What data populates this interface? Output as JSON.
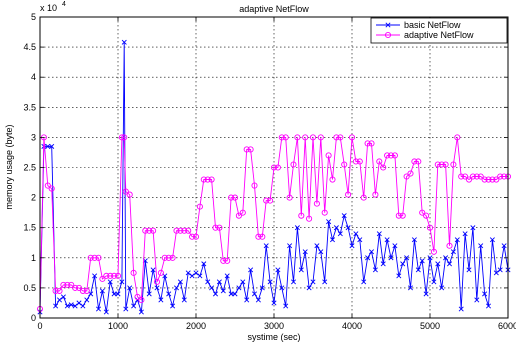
{
  "chart_data": {
    "type": "line",
    "title": "adaptive NetFlow",
    "xlabel": "systime (sec)",
    "ylabel": "memory usage (byte)",
    "y_multiplier_label": "x 10",
    "y_multiplier_exponent": "4",
    "xlim": [
      0,
      6000
    ],
    "ylim": [
      0,
      5
    ],
    "x_ticks": [
      0,
      1000,
      2000,
      3000,
      4000,
      5000,
      6000
    ],
    "y_ticks": [
      0,
      0.5,
      1,
      1.5,
      2,
      2.5,
      3,
      3.5,
      4,
      4.5,
      5
    ],
    "x_tick_labels": [
      "0",
      "1000",
      "2000",
      "3000",
      "4000",
      "5000",
      "6000"
    ],
    "y_tick_labels": [
      "0",
      "0.5",
      "1",
      "1.5",
      "2",
      "2.5",
      "3",
      "3.5",
      "4",
      "4.5",
      "5"
    ],
    "grid": true,
    "legend_position": "top-right",
    "series": [
      {
        "name": "basic NetFlow",
        "color": "#0000ff",
        "marker": "x",
        "x": [
          0,
          50,
          100,
          150,
          200,
          250,
          300,
          350,
          400,
          450,
          500,
          550,
          600,
          650,
          700,
          750,
          800,
          850,
          900,
          950,
          1000,
          1050,
          1080,
          1100,
          1150,
          1200,
          1250,
          1300,
          1350,
          1400,
          1450,
          1500,
          1550,
          1600,
          1650,
          1700,
          1750,
          1800,
          1850,
          1900,
          1950,
          2000,
          2050,
          2100,
          2150,
          2200,
          2250,
          2300,
          2350,
          2400,
          2450,
          2500,
          2550,
          2600,
          2650,
          2700,
          2750,
          2800,
          2850,
          2900,
          2950,
          3000,
          3050,
          3100,
          3150,
          3200,
          3250,
          3300,
          3350,
          3400,
          3450,
          3500,
          3550,
          3600,
          3650,
          3700,
          3750,
          3800,
          3850,
          3900,
          3950,
          4000,
          4050,
          4100,
          4150,
          4200,
          4250,
          4300,
          4350,
          4400,
          4450,
          4500,
          4550,
          4600,
          4650,
          4700,
          4750,
          4800,
          4850,
          4900,
          4950,
          5000,
          5050,
          5100,
          5150,
          5200,
          5250,
          5300,
          5350,
          5400,
          5450,
          5500,
          5550,
          5600,
          5650,
          5700,
          5750,
          5800,
          5850,
          5900,
          5950,
          6000
        ],
        "y": [
          0.1,
          2.85,
          2.85,
          2.85,
          0.2,
          0.3,
          0.35,
          0.2,
          0.22,
          0.2,
          0.25,
          0.2,
          0.3,
          0.4,
          0.7,
          0.15,
          0.45,
          0.1,
          0.6,
          0.4,
          0.4,
          0.6,
          4.58,
          0.15,
          0.5,
          0.2,
          0.3,
          0.1,
          0.95,
          0.4,
          0.8,
          0.5,
          0.3,
          0.7,
          0.4,
          0.2,
          0.5,
          0.6,
          0.3,
          0.75,
          0.7,
          0.75,
          0.7,
          0.9,
          0.6,
          0.5,
          0.4,
          0.6,
          0.45,
          0.7,
          0.4,
          0.4,
          0.5,
          0.6,
          0.3,
          0.8,
          0.4,
          0.3,
          0.5,
          1.2,
          0.6,
          0.25,
          0.8,
          0.5,
          0.2,
          1.2,
          0.6,
          1.5,
          0.8,
          1.1,
          0.5,
          0.6,
          1.2,
          1.1,
          0.6,
          1.6,
          1.3,
          1.5,
          1.4,
          1.7,
          1.5,
          1.2,
          1.4,
          1.3,
          0.6,
          1.0,
          1.1,
          0.8,
          1.4,
          0.9,
          1.3,
          1.0,
          1.2,
          0.7,
          0.9,
          1.0,
          0.5,
          1.3,
          0.8,
          0.95,
          0.4,
          1.0,
          0.6,
          0.9,
          0.5,
          1.0,
          0.9,
          1.1,
          1.3,
          0.15,
          1.4,
          0.8,
          1.5,
          0.3,
          1.2,
          0.4,
          0.2,
          1.3,
          0.75,
          0.8,
          1.2,
          0.8
        ]
      },
      {
        "name": "adaptive NetFlow",
        "color": "#ff00ff",
        "marker": "o",
        "x": [
          0,
          50,
          100,
          150,
          200,
          250,
          300,
          350,
          400,
          450,
          500,
          550,
          600,
          650,
          700,
          750,
          800,
          850,
          900,
          950,
          1000,
          1050,
          1080,
          1100,
          1150,
          1200,
          1250,
          1300,
          1350,
          1400,
          1450,
          1500,
          1550,
          1600,
          1650,
          1700,
          1750,
          1800,
          1850,
          1900,
          1950,
          2000,
          2050,
          2100,
          2150,
          2200,
          2250,
          2300,
          2350,
          2400,
          2450,
          2500,
          2550,
          2600,
          2650,
          2700,
          2750,
          2800,
          2850,
          2900,
          2950,
          3000,
          3050,
          3100,
          3150,
          3200,
          3250,
          3300,
          3350,
          3400,
          3450,
          3500,
          3550,
          3600,
          3650,
          3700,
          3750,
          3800,
          3850,
          3900,
          3950,
          4000,
          4050,
          4100,
          4150,
          4200,
          4250,
          4300,
          4350,
          4400,
          4450,
          4500,
          4550,
          4600,
          4650,
          4700,
          4750,
          4800,
          4850,
          4900,
          4950,
          5000,
          5050,
          5100,
          5150,
          5200,
          5250,
          5300,
          5350,
          5400,
          5450,
          5500,
          5550,
          5600,
          5650,
          5700,
          5750,
          5800,
          5850,
          5900,
          5950,
          6000
        ],
        "y": [
          0.15,
          3.0,
          2.2,
          2.15,
          0.45,
          0.45,
          0.55,
          0.55,
          0.55,
          0.5,
          0.5,
          0.45,
          0.45,
          1.0,
          1.0,
          1.0,
          0.65,
          0.7,
          0.7,
          0.7,
          0.7,
          3.0,
          3.0,
          2.1,
          2.05,
          0.75,
          0.35,
          0.3,
          1.45,
          1.45,
          1.45,
          0.6,
          0.75,
          1.0,
          1.0,
          1.0,
          1.45,
          1.45,
          1.45,
          1.45,
          1.35,
          1.35,
          1.85,
          2.3,
          2.3,
          2.3,
          1.5,
          1.5,
          0.95,
          0.95,
          2.0,
          2.0,
          1.7,
          1.75,
          2.8,
          2.8,
          2.2,
          1.35,
          1.35,
          1.95,
          1.95,
          2.5,
          2.5,
          3.0,
          3.0,
          2.0,
          2.55,
          3.0,
          1.7,
          3.0,
          1.65,
          3.0,
          1.9,
          3.0,
          1.75,
          2.7,
          2.3,
          3.0,
          3.0,
          2.55,
          2.05,
          3.0,
          2.6,
          2.6,
          2.0,
          2.9,
          2.9,
          2.05,
          2.6,
          2.5,
          2.7,
          2.7,
          2.7,
          1.7,
          1.7,
          2.35,
          2.4,
          2.6,
          2.6,
          1.75,
          1.7,
          1.5,
          1.1,
          2.55,
          2.55,
          2.55,
          1.2,
          2.55,
          3.0,
          2.35,
          2.35,
          2.3,
          2.35,
          2.35,
          2.35,
          2.3,
          2.3,
          2.3,
          2.3,
          2.35,
          2.35,
          2.35
        ]
      }
    ]
  }
}
